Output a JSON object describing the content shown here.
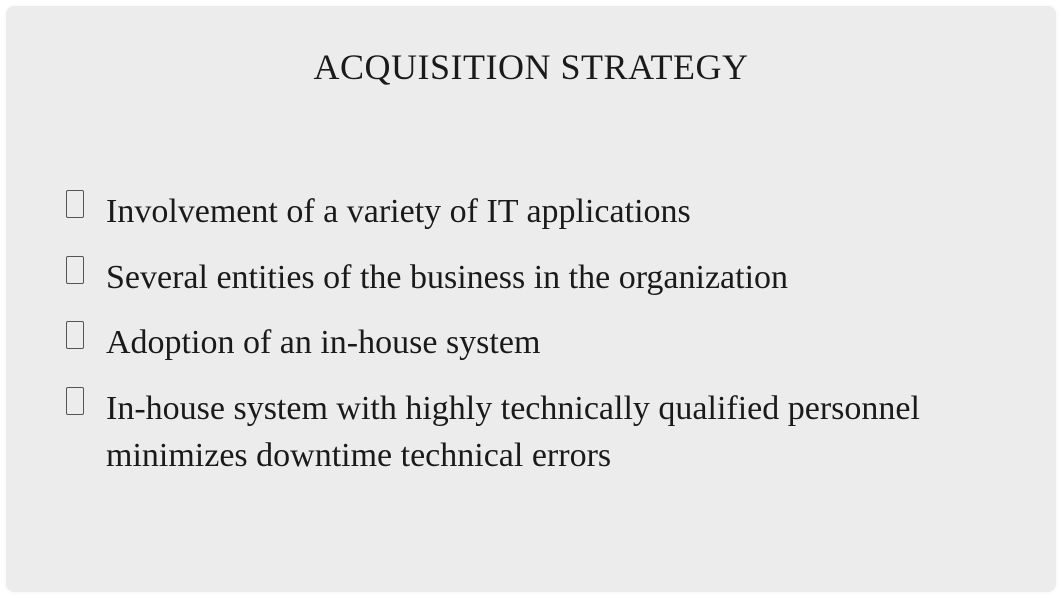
{
  "slide": {
    "title": "ACQUISITION STRATEGY",
    "bullets": [
      "Involvement of a variety of IT applications",
      "Several entities of the business in the organization",
      "Adoption of an in-house system",
      "In-house system with highly technically qualified personnel minimizes downtime technical errors"
    ],
    "colors": {
      "background": "#ececec",
      "text": "#1a1a1a",
      "bullet_border": "#555555"
    },
    "typography": {
      "title_fontsize": 36,
      "body_fontsize": 34,
      "font_family": "Georgia, Times New Roman, serif"
    }
  }
}
